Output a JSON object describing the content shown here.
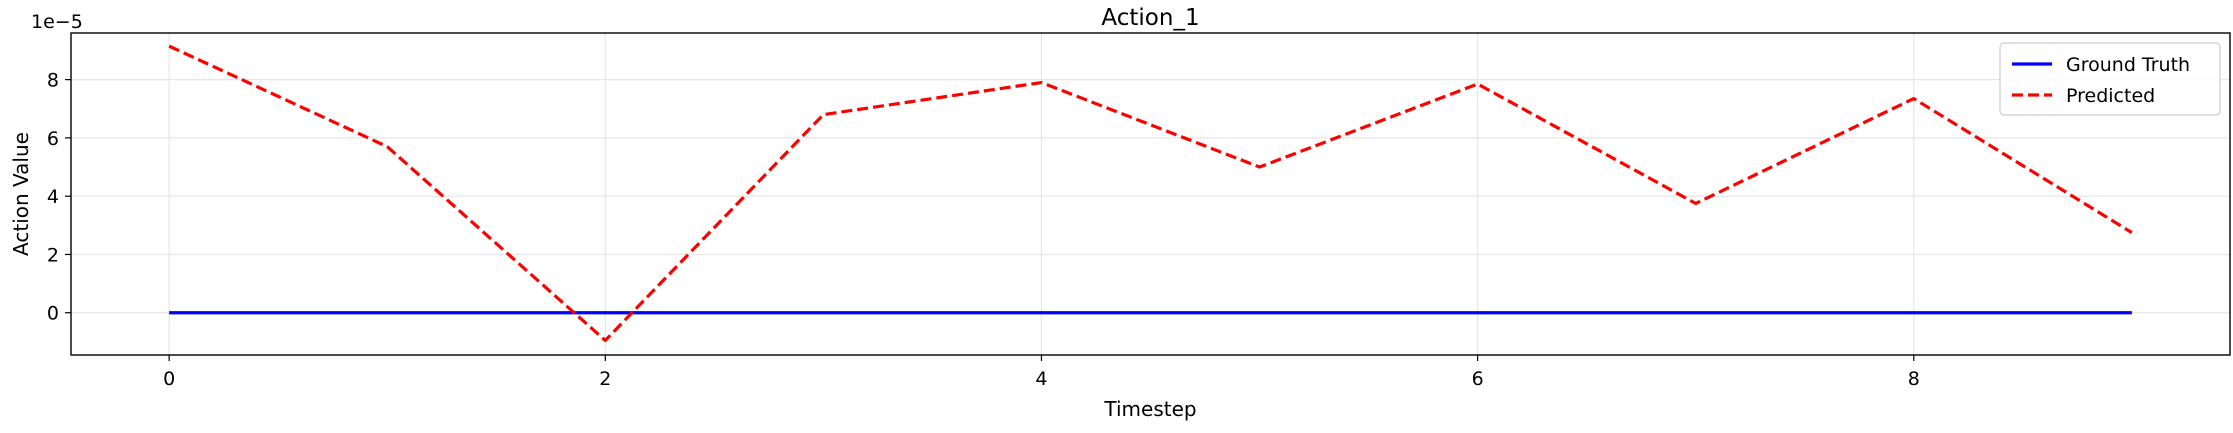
{
  "chart_data": {
    "type": "line",
    "title": "Action_1",
    "xlabel": "Timestep",
    "ylabel": "Action Value",
    "y_offset_text": "1e−5",
    "y_scale_exponent": -5,
    "x": [
      0,
      1,
      2,
      3,
      4,
      5,
      6,
      7,
      8,
      9
    ],
    "xlim": [
      -0.45,
      9.45
    ],
    "ylim": [
      -1.45,
      9.6
    ],
    "x_ticks": [
      0,
      2,
      4,
      6,
      8
    ],
    "y_ticks": [
      0,
      2,
      4,
      6,
      8
    ],
    "grid": true,
    "legend_position": "upper right",
    "series": [
      {
        "name": "Ground Truth",
        "color": "#0000ff",
        "style": "solid",
        "values": [
          0,
          0,
          0,
          0,
          0,
          0,
          0,
          0,
          0,
          0
        ]
      },
      {
        "name": "Predicted",
        "color": "#ff0000",
        "style": "dashed",
        "values": [
          9.15,
          5.7,
          -0.95,
          6.8,
          7.9,
          5.0,
          7.85,
          3.75,
          7.35,
          2.75
        ]
      }
    ]
  }
}
